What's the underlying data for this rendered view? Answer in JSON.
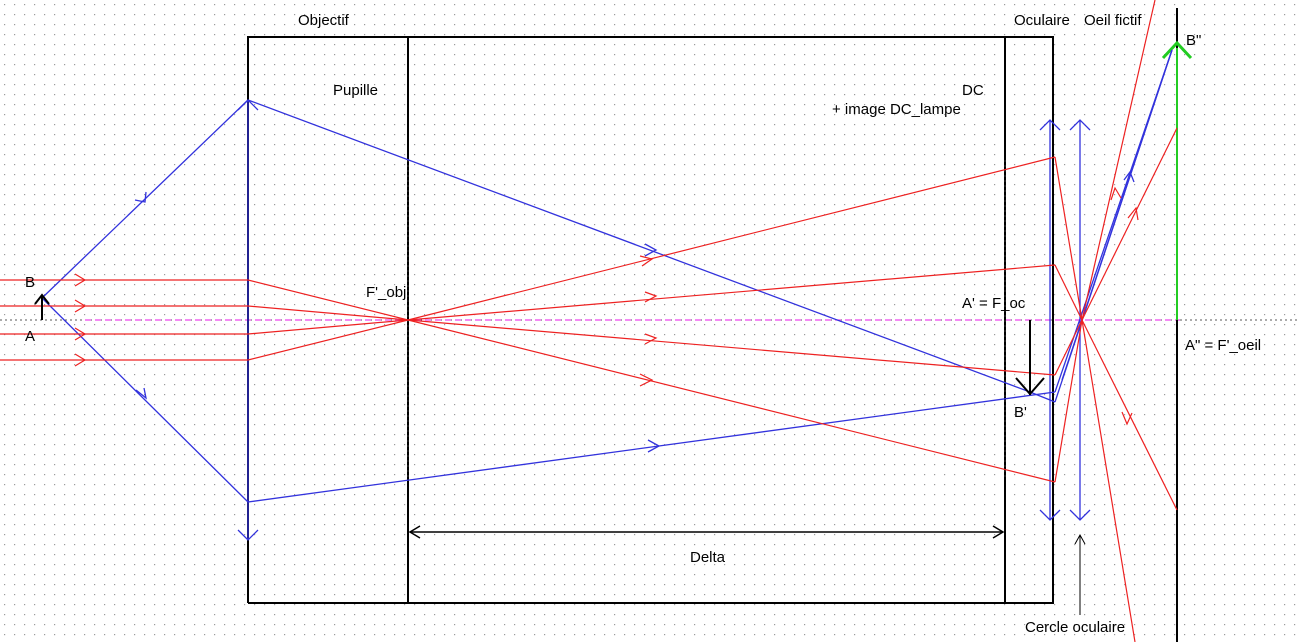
{
  "labels": {
    "objectif": "Objectif",
    "oculaire": "Oculaire",
    "oeil_fictif": "Oeil fictif",
    "pupille": "Pupille",
    "dc": "DC",
    "image_dc_lampe": "+ image DC_lampe",
    "b": "B",
    "a": "A",
    "f_obj": "F'_obj",
    "a_prime_f_oc": "A' = F_oc",
    "b_prime": "B'",
    "b_double_prime": "B\"",
    "a_double_prime_f_oeil": "A\" = F'_oeil",
    "delta": "Delta",
    "cercle_oculaire": "Cercle oculaire"
  },
  "colors": {
    "blue_rays": "#3333dd",
    "red_rays": "#ee2222",
    "optical_axis": "#ee44ee",
    "final_image": "#22cc22",
    "grid_dot": "#9a9a9a",
    "structure": "#000000"
  }
}
